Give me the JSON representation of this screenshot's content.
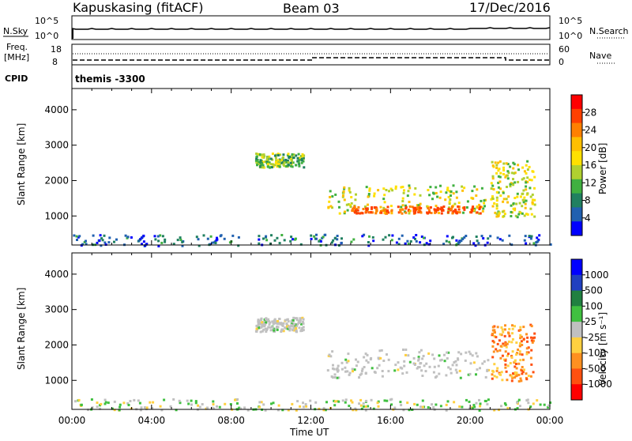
{
  "header": {
    "station": "Kapuskasing (fitACF)",
    "beam": "Beam 03",
    "date": "17/Dec/2016"
  },
  "strip_top": {
    "left_label": "N.Sky",
    "left_ticks": [
      "10^5",
      "10^0"
    ],
    "right_label": "N.Search",
    "right_ticks": [
      "10^5",
      "10^0"
    ],
    "trace_color": "#000000"
  },
  "strip_freq": {
    "left_label_1": "Freq.",
    "left_label_2": "[MHz]",
    "left_ticks": [
      "18",
      "8"
    ],
    "right_label": "Nave",
    "right_ticks": [
      "60",
      "0"
    ]
  },
  "cpid": {
    "label": "CPID",
    "value": "themis -3300"
  },
  "time_axis": {
    "ticks": [
      "00:00",
      "04:00",
      "08:00",
      "12:00",
      "16:00",
      "20:00",
      "00:00"
    ],
    "label": "Time UT"
  },
  "chart_data": [
    {
      "type": "heatmap",
      "panel": "power",
      "ylabel": "Slant Range [km]",
      "y_ticks": [
        "1000",
        "2000",
        "3000",
        "4000"
      ],
      "ylim": [
        180,
        4600
      ],
      "x_range_hours": [
        0,
        24
      ],
      "colorbar_label": "Power [dB]",
      "colorbar_ticks": [
        "28",
        "24",
        "20",
        "16",
        "12",
        "8",
        "4"
      ],
      "colorbar_colors": [
        "#ff0000",
        "#ff4000",
        "#ff8000",
        "#ffbf00",
        "#ffe000",
        "#b0d030",
        "#40b040",
        "#208060",
        "#2060b0",
        "#0000ff"
      ],
      "regions": [
        {
          "t0": 9.2,
          "t1": 11.6,
          "r0": 2400,
          "r1": 2800,
          "level": 0.45
        },
        {
          "t0": 12.8,
          "t1": 20.8,
          "r0": 1100,
          "r1": 1900,
          "level": 0.55
        },
        {
          "t0": 14.0,
          "t1": 20.5,
          "r0": 1100,
          "r1": 1300,
          "level": 0.95
        },
        {
          "t0": 21.0,
          "t1": 23.2,
          "r0": 1000,
          "r1": 2600,
          "level": 0.55
        },
        {
          "t0": 0.0,
          "t1": 24.0,
          "r0": 180,
          "r1": 500,
          "level": 0.2
        }
      ]
    },
    {
      "type": "heatmap",
      "panel": "velocity",
      "ylabel": "Slant Range [km]",
      "y_ticks": [
        "1000",
        "2000",
        "3000",
        "4000"
      ],
      "ylim": [
        180,
        4600
      ],
      "x_range_hours": [
        0,
        24
      ],
      "colorbar_label": "Velocity [m s⁻¹]",
      "colorbar_ticks": [
        "1000",
        "500",
        "100",
        "25",
        "-25",
        "-100",
        "-500",
        "-1000"
      ],
      "colorbar_colors": [
        "#0000ff",
        "#2040c0",
        "#208040",
        "#40c040",
        "#c0c0c0",
        "#ffd040",
        "#ff9020",
        "#ff5010",
        "#ff0000"
      ],
      "regions": [
        {
          "t0": 9.2,
          "t1": 11.6,
          "r0": 2400,
          "r1": 2800,
          "level": "ground"
        },
        {
          "t0": 12.8,
          "t1": 21.0,
          "r0": 1100,
          "r1": 1900,
          "level": "ground"
        },
        {
          "t0": 21.0,
          "t1": 23.2,
          "r0": 1000,
          "r1": 2600,
          "level": "negative"
        },
        {
          "t0": 0.0,
          "t1": 24.0,
          "r0": 180,
          "r1": 500,
          "level": "mixed"
        }
      ]
    }
  ]
}
